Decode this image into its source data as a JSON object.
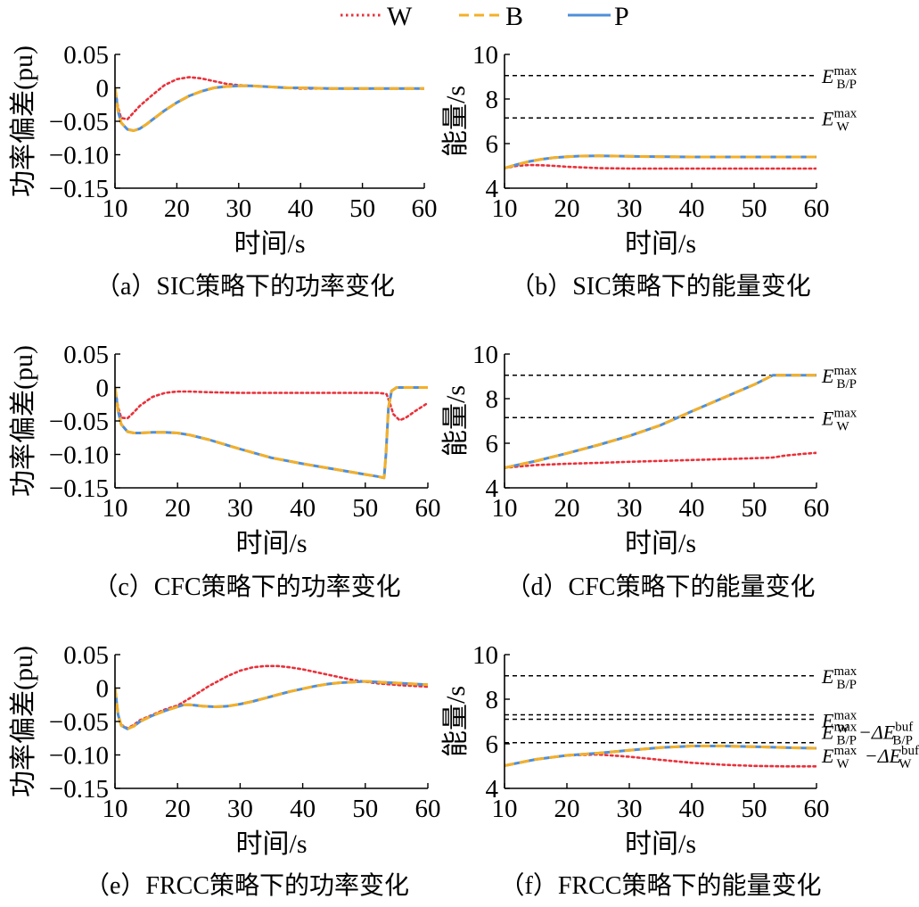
{
  "legend": {
    "items": [
      {
        "label": "W",
        "color": "#e8313a",
        "dash": "dotted"
      },
      {
        "label": "B",
        "color": "#f4b028",
        "dash": "dashed"
      },
      {
        "label": "P",
        "color": "#4f8fd9",
        "dash": "solid"
      }
    ]
  },
  "chart_data": [
    {
      "id": "a",
      "type": "line",
      "caption": "（a）SIC策略下的功率变化",
      "xlabel": "时间/s",
      "ylabel": "功率偏差(pu)",
      "xlim": [
        10,
        60
      ],
      "ylim": [
        -0.15,
        0.05
      ],
      "xticks": [
        "10",
        "20",
        "30",
        "40",
        "50",
        "60"
      ],
      "yticks": [
        "0.05",
        "0",
        "−0.05",
        "−0.10",
        "−0.15"
      ],
      "ref_lines": [],
      "series": [
        {
          "name": "W",
          "x": [
            10,
            10.5,
            11,
            12,
            13,
            14,
            16,
            18,
            20,
            22,
            24,
            26,
            28,
            30,
            32,
            34,
            36,
            38,
            40,
            45,
            50,
            55,
            60
          ],
          "y": [
            0,
            -0.03,
            -0.045,
            -0.047,
            -0.037,
            -0.027,
            -0.011,
            0.004,
            0.013,
            0.016,
            0.014,
            0.01,
            0.006,
            0.004,
            0.003,
            0.002,
            0.001,
            0.0,
            -0.001,
            -0.001,
            -0.001,
            -0.001,
            -0.001
          ]
        },
        {
          "name": "B",
          "x": [
            10,
            10.5,
            11,
            12,
            13,
            14,
            15,
            16,
            18,
            20,
            22,
            24,
            26,
            28,
            30,
            32,
            34,
            36,
            38,
            40,
            45,
            50,
            55,
            60
          ],
          "y": [
            0,
            -0.035,
            -0.052,
            -0.062,
            -0.064,
            -0.061,
            -0.055,
            -0.048,
            -0.034,
            -0.022,
            -0.012,
            -0.005,
            0.0,
            0.002,
            0.003,
            0.003,
            0.002,
            0.001,
            0.0,
            0.0,
            -0.001,
            -0.001,
            -0.001,
            -0.001
          ]
        },
        {
          "name": "P",
          "x": [
            10,
            10.5,
            11,
            12,
            13,
            14,
            15,
            16,
            18,
            20,
            22,
            24,
            26,
            28,
            30,
            32,
            34,
            36,
            38,
            40,
            45,
            50,
            55,
            60
          ],
          "y": [
            0,
            -0.035,
            -0.052,
            -0.062,
            -0.064,
            -0.061,
            -0.055,
            -0.048,
            -0.034,
            -0.022,
            -0.012,
            -0.005,
            0.0,
            0.002,
            0.003,
            0.003,
            0.002,
            0.001,
            0.0,
            0.0,
            -0.001,
            -0.001,
            -0.001,
            -0.001
          ]
        }
      ]
    },
    {
      "id": "b",
      "type": "line",
      "caption": "（b）SIC策略下的能量变化",
      "xlabel": "时间/s",
      "ylabel": "能量/s",
      "xlim": [
        10,
        60
      ],
      "ylim": [
        4,
        10
      ],
      "xticks": [
        "10",
        "20",
        "30",
        "40",
        "50",
        "60"
      ],
      "yticks": [
        "10",
        "8",
        "6",
        "4"
      ],
      "ref_lines": [
        {
          "y": 9.05,
          "main": "E",
          "sup": "max",
          "sub": "B/P"
        },
        {
          "y": 7.15,
          "main": "E",
          "sup": "max",
          "sub": "W"
        }
      ],
      "series": [
        {
          "name": "W",
          "x": [
            10,
            12,
            14,
            16,
            18,
            20,
            25,
            30,
            40,
            50,
            60
          ],
          "y": [
            4.9,
            5.0,
            5.04,
            5.03,
            5.0,
            4.96,
            4.9,
            4.88,
            4.88,
            4.88,
            4.88
          ]
        },
        {
          "name": "B",
          "x": [
            10,
            12,
            14,
            16,
            18,
            20,
            22,
            25,
            28,
            32,
            40,
            50,
            60
          ],
          "y": [
            4.9,
            5.06,
            5.2,
            5.3,
            5.37,
            5.41,
            5.44,
            5.45,
            5.44,
            5.42,
            5.4,
            5.4,
            5.4
          ]
        },
        {
          "name": "P",
          "x": [
            10,
            12,
            14,
            16,
            18,
            20,
            22,
            25,
            28,
            32,
            40,
            50,
            60
          ],
          "y": [
            4.9,
            5.06,
            5.2,
            5.3,
            5.37,
            5.41,
            5.44,
            5.45,
            5.44,
            5.42,
            5.4,
            5.4,
            5.4
          ]
        }
      ]
    },
    {
      "id": "c",
      "type": "line",
      "caption": "（c）CFC策略下的功率变化",
      "xlabel": "时间/s",
      "ylabel": "功率偏差(pu)",
      "xlim": [
        10,
        60
      ],
      "ylim": [
        -0.15,
        0.05
      ],
      "xticks": [
        "10",
        "20",
        "30",
        "40",
        "50",
        "60"
      ],
      "yticks": [
        "0.05",
        "0",
        "−0.05",
        "−0.10",
        "−0.15"
      ],
      "ref_lines": [],
      "series": [
        {
          "name": "W",
          "x": [
            10,
            10.5,
            11,
            12,
            13,
            14,
            16,
            18,
            20,
            22,
            25,
            30,
            35,
            40,
            45,
            50,
            52,
            53,
            53.4,
            53.8,
            54.5,
            55.5,
            56.5,
            58,
            60
          ],
          "y": [
            0,
            -0.03,
            -0.045,
            -0.046,
            -0.037,
            -0.027,
            -0.014,
            -0.008,
            -0.006,
            -0.006,
            -0.007,
            -0.008,
            -0.008,
            -0.008,
            -0.008,
            -0.008,
            -0.008,
            -0.009,
            -0.01,
            -0.02,
            -0.04,
            -0.049,
            -0.045,
            -0.035,
            -0.023
          ]
        },
        {
          "name": "B",
          "x": [
            10,
            10.5,
            11,
            12,
            13,
            14,
            16,
            18,
            20,
            22,
            25,
            30,
            35,
            40,
            45,
            50,
            52,
            53,
            53.3,
            53.7,
            54.2,
            55,
            56,
            58,
            60
          ],
          "y": [
            0,
            -0.035,
            -0.055,
            -0.066,
            -0.068,
            -0.068,
            -0.067,
            -0.067,
            -0.068,
            -0.071,
            -0.078,
            -0.092,
            -0.105,
            -0.114,
            -0.122,
            -0.13,
            -0.133,
            -0.135,
            -0.1,
            -0.03,
            -0.005,
            0.0,
            0.0,
            0.0,
            0.0
          ]
        },
        {
          "name": "P",
          "x": [
            10,
            10.5,
            11,
            12,
            13,
            14,
            16,
            18,
            20,
            22,
            25,
            30,
            35,
            40,
            45,
            50,
            52,
            53,
            53.3,
            53.7,
            54.2,
            55,
            56,
            58,
            60
          ],
          "y": [
            0,
            -0.035,
            -0.055,
            -0.066,
            -0.068,
            -0.068,
            -0.067,
            -0.067,
            -0.068,
            -0.071,
            -0.078,
            -0.092,
            -0.105,
            -0.114,
            -0.122,
            -0.13,
            -0.133,
            -0.135,
            -0.1,
            -0.03,
            -0.005,
            0.0,
            0.0,
            0.0,
            0.0
          ]
        }
      ]
    },
    {
      "id": "d",
      "type": "line",
      "caption": "（d）CFC策略下的能量变化",
      "xlabel": "时间/s",
      "ylabel": "能量/s",
      "xlim": [
        10,
        60
      ],
      "ylim": [
        4,
        10
      ],
      "xticks": [
        "10",
        "20",
        "30",
        "40",
        "50",
        "60"
      ],
      "yticks": [
        "10",
        "8",
        "6",
        "4"
      ],
      "ref_lines": [
        {
          "y": 9.05,
          "main": "E",
          "sup": "max",
          "sub": "B/P"
        },
        {
          "y": 7.15,
          "main": "E",
          "sup": "max",
          "sub": "W"
        }
      ],
      "series": [
        {
          "name": "W",
          "x": [
            10,
            15,
            20,
            25,
            30,
            35,
            40,
            45,
            50,
            53,
            55,
            58,
            60
          ],
          "y": [
            4.9,
            5.02,
            5.08,
            5.12,
            5.17,
            5.21,
            5.25,
            5.29,
            5.33,
            5.36,
            5.45,
            5.53,
            5.57
          ]
        },
        {
          "name": "B",
          "x": [
            10,
            15,
            20,
            25,
            30,
            35,
            40,
            45,
            50,
            53,
            60
          ],
          "y": [
            4.9,
            5.2,
            5.55,
            5.92,
            6.33,
            6.81,
            7.43,
            8.03,
            8.63,
            9.05,
            9.05
          ]
        },
        {
          "name": "P",
          "x": [
            10,
            15,
            20,
            25,
            30,
            35,
            40,
            45,
            50,
            53,
            60
          ],
          "y": [
            4.9,
            5.2,
            5.55,
            5.92,
            6.33,
            6.81,
            7.43,
            8.03,
            8.63,
            9.05,
            9.05
          ]
        }
      ]
    },
    {
      "id": "e",
      "type": "line",
      "caption": "（e）FRCC策略下的功率变化",
      "xlabel": "时间/s",
      "ylabel": "功率偏差(pu)",
      "xlim": [
        10,
        60
      ],
      "ylim": [
        -0.15,
        0.05
      ],
      "xticks": [
        "10",
        "20",
        "30",
        "40",
        "50",
        "60"
      ],
      "yticks": [
        "0.05",
        "0",
        "−0.05",
        "−0.10",
        "−0.15"
      ],
      "ref_lines": [],
      "series": [
        {
          "name": "W",
          "x": [
            10,
            10.5,
            11,
            12,
            13,
            14,
            16,
            18,
            20,
            22,
            25,
            28,
            30,
            32,
            34,
            36,
            38,
            40,
            44,
            48,
            52,
            56,
            60
          ],
          "y": [
            0,
            -0.04,
            -0.055,
            -0.06,
            -0.055,
            -0.048,
            -0.04,
            -0.032,
            -0.026,
            -0.015,
            0.003,
            0.018,
            0.026,
            0.031,
            0.033,
            0.033,
            0.031,
            0.028,
            0.02,
            0.012,
            0.007,
            0.004,
            0.002
          ]
        },
        {
          "name": "B",
          "x": [
            10,
            10.5,
            11,
            12,
            13,
            14,
            16,
            18,
            20,
            21,
            22,
            24,
            26,
            28,
            30,
            32,
            34,
            36,
            38,
            40,
            42,
            44,
            46,
            48,
            50,
            52,
            54,
            56,
            58,
            60
          ],
          "y": [
            0,
            -0.04,
            -0.056,
            -0.061,
            -0.057,
            -0.05,
            -0.041,
            -0.034,
            -0.028,
            -0.025,
            -0.025,
            -0.027,
            -0.028,
            -0.027,
            -0.024,
            -0.02,
            -0.015,
            -0.01,
            -0.005,
            -0.001,
            0.003,
            0.006,
            0.008,
            0.009,
            0.01,
            0.009,
            0.008,
            0.007,
            0.006,
            0.005
          ]
        },
        {
          "name": "P",
          "x": [
            10,
            10.5,
            11,
            12,
            13,
            14,
            16,
            18,
            20,
            21,
            22,
            24,
            26,
            28,
            30,
            32,
            34,
            36,
            38,
            40,
            42,
            44,
            46,
            48,
            50,
            52,
            54,
            56,
            58,
            60
          ],
          "y": [
            0,
            -0.04,
            -0.056,
            -0.061,
            -0.057,
            -0.05,
            -0.041,
            -0.034,
            -0.028,
            -0.025,
            -0.025,
            -0.027,
            -0.028,
            -0.027,
            -0.024,
            -0.02,
            -0.015,
            -0.01,
            -0.005,
            -0.001,
            0.003,
            0.006,
            0.008,
            0.009,
            0.01,
            0.009,
            0.008,
            0.007,
            0.006,
            0.005
          ]
        }
      ]
    },
    {
      "id": "f",
      "type": "line",
      "caption": "（f）FRCC策略下的能量变化",
      "xlabel": "时间/s",
      "ylabel": "能量/s",
      "xlim": [
        10,
        60
      ],
      "ylim": [
        4,
        10
      ],
      "xticks": [
        "10",
        "20",
        "30",
        "40",
        "50",
        "60"
      ],
      "yticks": [
        "10",
        "8",
        "6",
        "4"
      ],
      "ref_lines": [
        {
          "y": 9.05,
          "main": "E",
          "sup": "max",
          "sub": "B/P"
        },
        {
          "y": 7.3,
          "main": "E",
          "sup": "max",
          "sub": "W"
        },
        {
          "y": 7.1,
          "main": "E",
          "sup": "max",
          "sub": "B/P",
          "suffix": "−ΔE",
          "suffix_sup": "buf",
          "suffix_sub": "B/P"
        },
        {
          "y": 6.05,
          "main": "E",
          "sup": "max",
          "sub": "W",
          "suffix": "−ΔE",
          "suffix_sup": "buf",
          "suffix_sub": "W"
        }
      ],
      "series": [
        {
          "name": "W",
          "x": [
            10,
            15,
            20,
            25,
            30,
            35,
            40,
            45,
            50,
            55,
            60
          ],
          "y": [
            5.02,
            5.3,
            5.48,
            5.52,
            5.42,
            5.28,
            5.15,
            5.06,
            5.01,
            4.99,
            4.99
          ]
        },
        {
          "name": "B",
          "x": [
            10,
            15,
            20,
            25,
            30,
            35,
            40,
            45,
            50,
            55,
            60
          ],
          "y": [
            5.02,
            5.3,
            5.48,
            5.58,
            5.71,
            5.83,
            5.9,
            5.9,
            5.87,
            5.83,
            5.8
          ]
        },
        {
          "name": "P",
          "x": [
            10,
            15,
            20,
            25,
            30,
            35,
            40,
            45,
            50,
            55,
            60
          ],
          "y": [
            5.02,
            5.3,
            5.48,
            5.58,
            5.71,
            5.83,
            5.9,
            5.9,
            5.87,
            5.83,
            5.8
          ]
        }
      ]
    }
  ]
}
